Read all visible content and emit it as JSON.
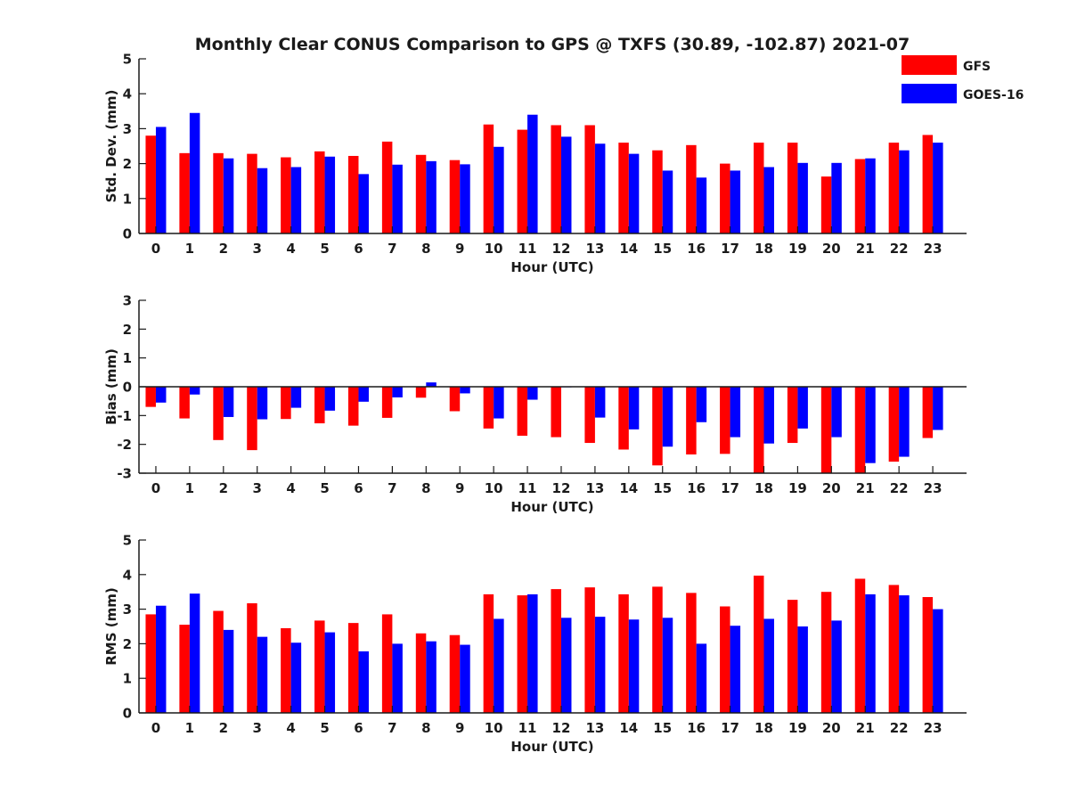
{
  "chart_data": {
    "title": "Monthly Clear CONUS Comparison to GPS @ TXFS (30.89, -102.87) 2021-07",
    "legend": {
      "placement": "top-right",
      "entries": [
        "GFS",
        "GOES-16"
      ]
    },
    "colors": {
      "GFS": "#ff0000",
      "GOES-16": "#0000ff"
    },
    "panels": [
      {
        "type": "bar",
        "xlabel": "Hour (UTC)",
        "ylabel": "Std. Dev. (mm)",
        "ylim": [
          0,
          5
        ],
        "yticks": [
          "0",
          "1",
          "2",
          "3",
          "4",
          "5"
        ],
        "categories": [
          "0",
          "1",
          "2",
          "3",
          "4",
          "5",
          "6",
          "7",
          "8",
          "9",
          "10",
          "11",
          "12",
          "13",
          "14",
          "15",
          "16",
          "17",
          "18",
          "19",
          "20",
          "21",
          "22",
          "23"
        ],
        "series": [
          {
            "name": "GFS",
            "values": [
              2.8,
              2.3,
              2.3,
              2.28,
              2.18,
              2.35,
              2.22,
              2.63,
              2.25,
              2.1,
              3.12,
              2.97,
              3.1,
              3.1,
              2.6,
              2.38,
              2.53,
              2.0,
              2.6,
              2.6,
              1.63,
              2.13,
              2.6,
              2.82
            ]
          },
          {
            "name": "GOES-16",
            "values": [
              3.05,
              3.45,
              2.15,
              1.87,
              1.9,
              2.2,
              1.7,
              1.97,
              2.07,
              1.98,
              2.48,
              3.4,
              2.77,
              2.57,
              2.28,
              1.8,
              1.6,
              1.8,
              1.9,
              2.02,
              2.02,
              2.15,
              2.38,
              2.6
            ]
          }
        ]
      },
      {
        "type": "bar",
        "xlabel": "Hour (UTC)",
        "ylabel": "Bias (mm)",
        "ylim": [
          -3,
          3
        ],
        "yticks": [
          "-3",
          "-2",
          "-1",
          "0",
          "1",
          "2",
          "3"
        ],
        "categories": [
          "0",
          "1",
          "2",
          "3",
          "4",
          "5",
          "6",
          "7",
          "8",
          "9",
          "10",
          "11",
          "12",
          "13",
          "14",
          "15",
          "16",
          "17",
          "18",
          "19",
          "20",
          "21",
          "22",
          "23"
        ],
        "series": [
          {
            "name": "GFS",
            "values": [
              -0.7,
              -1.1,
              -1.85,
              -2.2,
              -1.12,
              -1.27,
              -1.35,
              -1.08,
              -0.38,
              -0.85,
              -1.45,
              -1.7,
              -1.75,
              -1.95,
              -2.18,
              -2.73,
              -2.35,
              -2.33,
              -3.0,
              -1.95,
              -3.0,
              -3.0,
              -2.6,
              -1.78
            ]
          },
          {
            "name": "GOES-16",
            "values": [
              -0.55,
              -0.27,
              -1.05,
              -1.13,
              -0.73,
              -0.83,
              -0.52,
              -0.37,
              0.15,
              -0.23,
              -1.1,
              -0.45,
              -0.02,
              -1.07,
              -1.48,
              -2.08,
              -1.23,
              -1.75,
              -1.97,
              -1.45,
              -1.75,
              -2.65,
              -2.43,
              -1.5
            ]
          }
        ]
      },
      {
        "type": "bar",
        "xlabel": "Hour (UTC)",
        "ylabel": "RMS (mm)",
        "ylim": [
          0,
          5
        ],
        "yticks": [
          "0",
          "1",
          "2",
          "3",
          "4",
          "5"
        ],
        "categories": [
          "0",
          "1",
          "2",
          "3",
          "4",
          "5",
          "6",
          "7",
          "8",
          "9",
          "10",
          "11",
          "12",
          "13",
          "14",
          "15",
          "16",
          "17",
          "18",
          "19",
          "20",
          "21",
          "22",
          "23"
        ],
        "series": [
          {
            "name": "GFS",
            "values": [
              2.85,
              2.55,
              2.95,
              3.17,
              2.45,
              2.67,
              2.6,
              2.85,
              2.3,
              2.25,
              3.43,
              3.4,
              3.58,
              3.63,
              3.43,
              3.65,
              3.47,
              3.08,
              3.97,
              3.27,
              3.5,
              3.88,
              3.7,
              3.35
            ]
          },
          {
            "name": "GOES-16",
            "values": [
              3.1,
              3.45,
              2.4,
              2.2,
              2.03,
              2.33,
              1.78,
              2.0,
              2.07,
              1.97,
              2.72,
              3.43,
              2.75,
              2.78,
              2.7,
              2.75,
              2.0,
              2.52,
              2.72,
              2.5,
              2.67,
              3.43,
              3.4,
              3.0
            ]
          }
        ]
      }
    ]
  }
}
